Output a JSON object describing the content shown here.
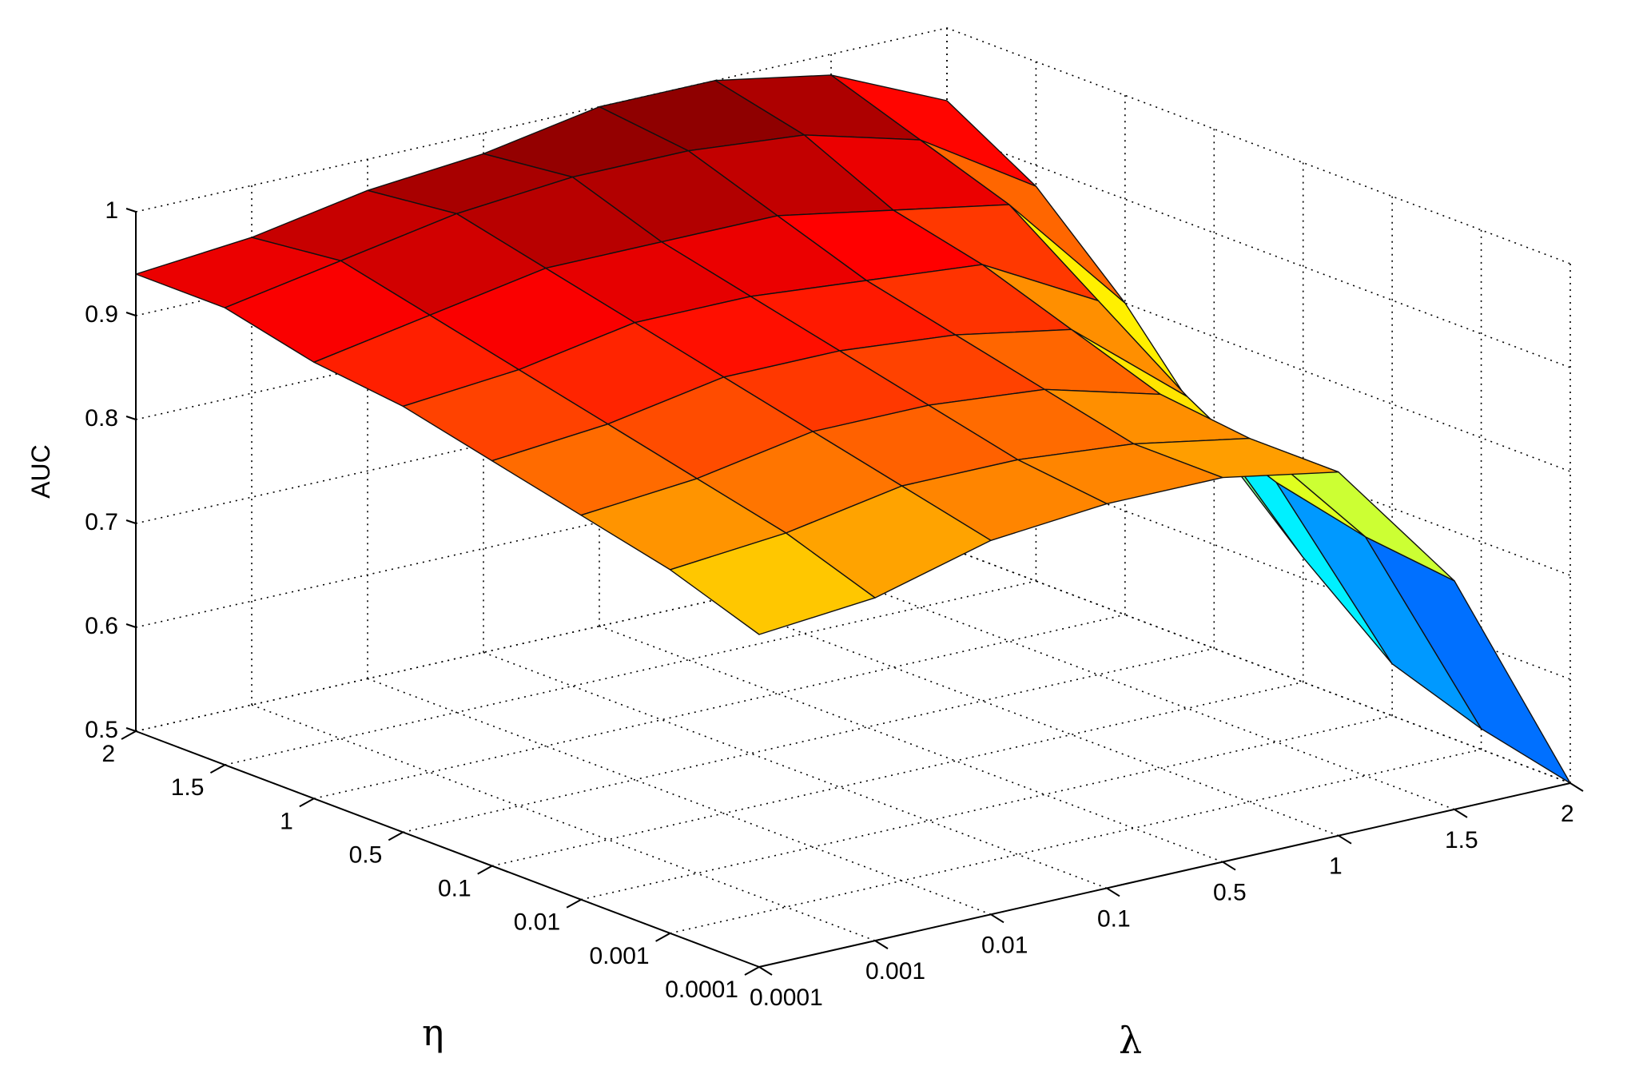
{
  "chart_data": {
    "type": "surface",
    "title": "",
    "zlabel": "AUC",
    "xlabel": "λ",
    "ylabel": "η",
    "zlim": [
      0.5,
      1
    ],
    "z_ticks": [
      "0.5",
      "0.6",
      "0.7",
      "0.8",
      "0.9",
      "1"
    ],
    "lambda_ticks": [
      "0.0001",
      "0.001",
      "0.01",
      "0.1",
      "0.5",
      "1",
      "1.5",
      "2"
    ],
    "eta_ticks": [
      "0.0001",
      "0.001",
      "0.01",
      "0.1",
      "0.5",
      "1",
      "1.5",
      "2"
    ],
    "colormap": "jet",
    "grid": true,
    "auc_rows_note_eta_order": "rows follow eta_ticks order; columns follow lambda_ticks order",
    "auc": [
      [
        0.82,
        0.83,
        0.86,
        0.87,
        0.87,
        0.85,
        0.72,
        0.5
      ],
      [
        0.85,
        0.86,
        0.88,
        0.88,
        0.87,
        0.85,
        0.73,
        0.52
      ],
      [
        0.87,
        0.88,
        0.9,
        0.9,
        0.89,
        0.86,
        0.75,
        0.55
      ],
      [
        0.89,
        0.9,
        0.92,
        0.92,
        0.91,
        0.89,
        0.8,
        0.62
      ],
      [
        0.91,
        0.92,
        0.94,
        0.94,
        0.93,
        0.92,
        0.86,
        0.7
      ],
      [
        0.92,
        0.94,
        0.96,
        0.96,
        0.96,
        0.94,
        0.92,
        0.8
      ],
      [
        0.94,
        0.96,
        0.98,
        0.99,
        0.99,
        0.98,
        0.95,
        0.88
      ],
      [
        0.94,
        0.95,
        0.97,
        0.98,
        1.0,
        1.0,
        0.98,
        0.93
      ]
    ],
    "axis_names": {
      "z": "AUC",
      "lambda": "λ",
      "eta": "η"
    }
  }
}
